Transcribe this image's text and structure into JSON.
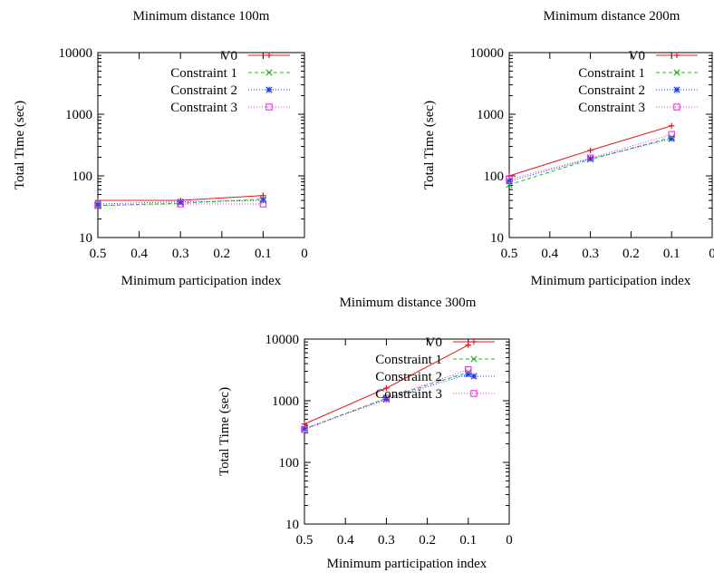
{
  "chart_data": [
    {
      "type": "line",
      "title": "Minimum distance 100m",
      "xlabel": "Minimum participation index",
      "ylabel": "Total Time (sec)",
      "x_ticks": [
        "0.5",
        "0.4",
        "0.3",
        "0.2",
        "0.1",
        "0"
      ],
      "y_ticks": [
        "10",
        "100",
        "1000",
        "10000"
      ],
      "xlim": [
        0.5,
        0
      ],
      "ylim": [
        10,
        10000
      ],
      "y_scale": "log",
      "legend": "top-right",
      "x": [
        0.5,
        0.3,
        0.1
      ],
      "series": [
        {
          "name": "V0",
          "color": "#e41a1c",
          "marker": "plus",
          "dash": "none",
          "values": [
            40,
            40,
            48
          ]
        },
        {
          "name": "Constraint 1",
          "color": "#22bb22",
          "marker": "x",
          "dash": "4,3",
          "values": [
            33,
            36,
            42
          ]
        },
        {
          "name": "Constraint 2",
          "color": "#1f3fdd",
          "marker": "star",
          "dash": "1,2",
          "values": [
            35,
            38,
            40
          ]
        },
        {
          "name": "Constraint 3",
          "color": "#e233e2",
          "marker": "square",
          "dash": "1,2",
          "values": [
            33,
            35,
            35
          ]
        }
      ]
    },
    {
      "type": "line",
      "title": "Minimum distance 200m",
      "xlabel": "Minimum participation index",
      "ylabel": "Total Time (sec)",
      "x_ticks": [
        "0.5",
        "0.4",
        "0.3",
        "0.2",
        "0.1",
        "0"
      ],
      "y_ticks": [
        "10",
        "100",
        "1000",
        "10000"
      ],
      "xlim": [
        0.5,
        0
      ],
      "ylim": [
        10,
        10000
      ],
      "y_scale": "log",
      "legend": "top-right",
      "x": [
        0.5,
        0.3,
        0.1
      ],
      "series": [
        {
          "name": "V0",
          "color": "#e41a1c",
          "marker": "plus",
          "dash": "none",
          "values": [
            100,
            260,
            650
          ]
        },
        {
          "name": "Constraint 1",
          "color": "#22bb22",
          "marker": "x",
          "dash": "4,3",
          "values": [
            72,
            185,
            420
          ]
        },
        {
          "name": "Constraint 2",
          "color": "#1f3fdd",
          "marker": "star",
          "dash": "1,2",
          "values": [
            82,
            190,
            400
          ]
        },
        {
          "name": "Constraint 3",
          "color": "#e233e2",
          "marker": "square",
          "dash": "1,2",
          "values": [
            88,
            195,
            470
          ]
        }
      ]
    },
    {
      "type": "line",
      "title": "Minimum distance 300m",
      "xlabel": "Minimum participation index",
      "ylabel": "Total Time (sec)",
      "x_ticks": [
        "0.5",
        "0.4",
        "0.3",
        "0.2",
        "0.1",
        "0"
      ],
      "y_ticks": [
        "10",
        "100",
        "1000",
        "10000"
      ],
      "xlim": [
        0.5,
        0
      ],
      "ylim": [
        10,
        10000
      ],
      "y_scale": "log",
      "legend": "top-right",
      "x": [
        0.5,
        0.3,
        0.1
      ],
      "series": [
        {
          "name": "V0",
          "color": "#e41a1c",
          "marker": "plus",
          "dash": "none",
          "values": [
            420,
            1600,
            8000
          ]
        },
        {
          "name": "Constraint 1",
          "color": "#22bb22",
          "marker": "x",
          "dash": "4,3",
          "values": [
            350,
            1100,
            2900
          ]
        },
        {
          "name": "Constraint 2",
          "color": "#1f3fdd",
          "marker": "star",
          "dash": "1,2",
          "values": [
            350,
            1050,
            2700
          ]
        },
        {
          "name": "Constraint 3",
          "color": "#e233e2",
          "marker": "square",
          "dash": "1,2",
          "values": [
            340,
            1100,
            3200
          ]
        }
      ]
    }
  ]
}
